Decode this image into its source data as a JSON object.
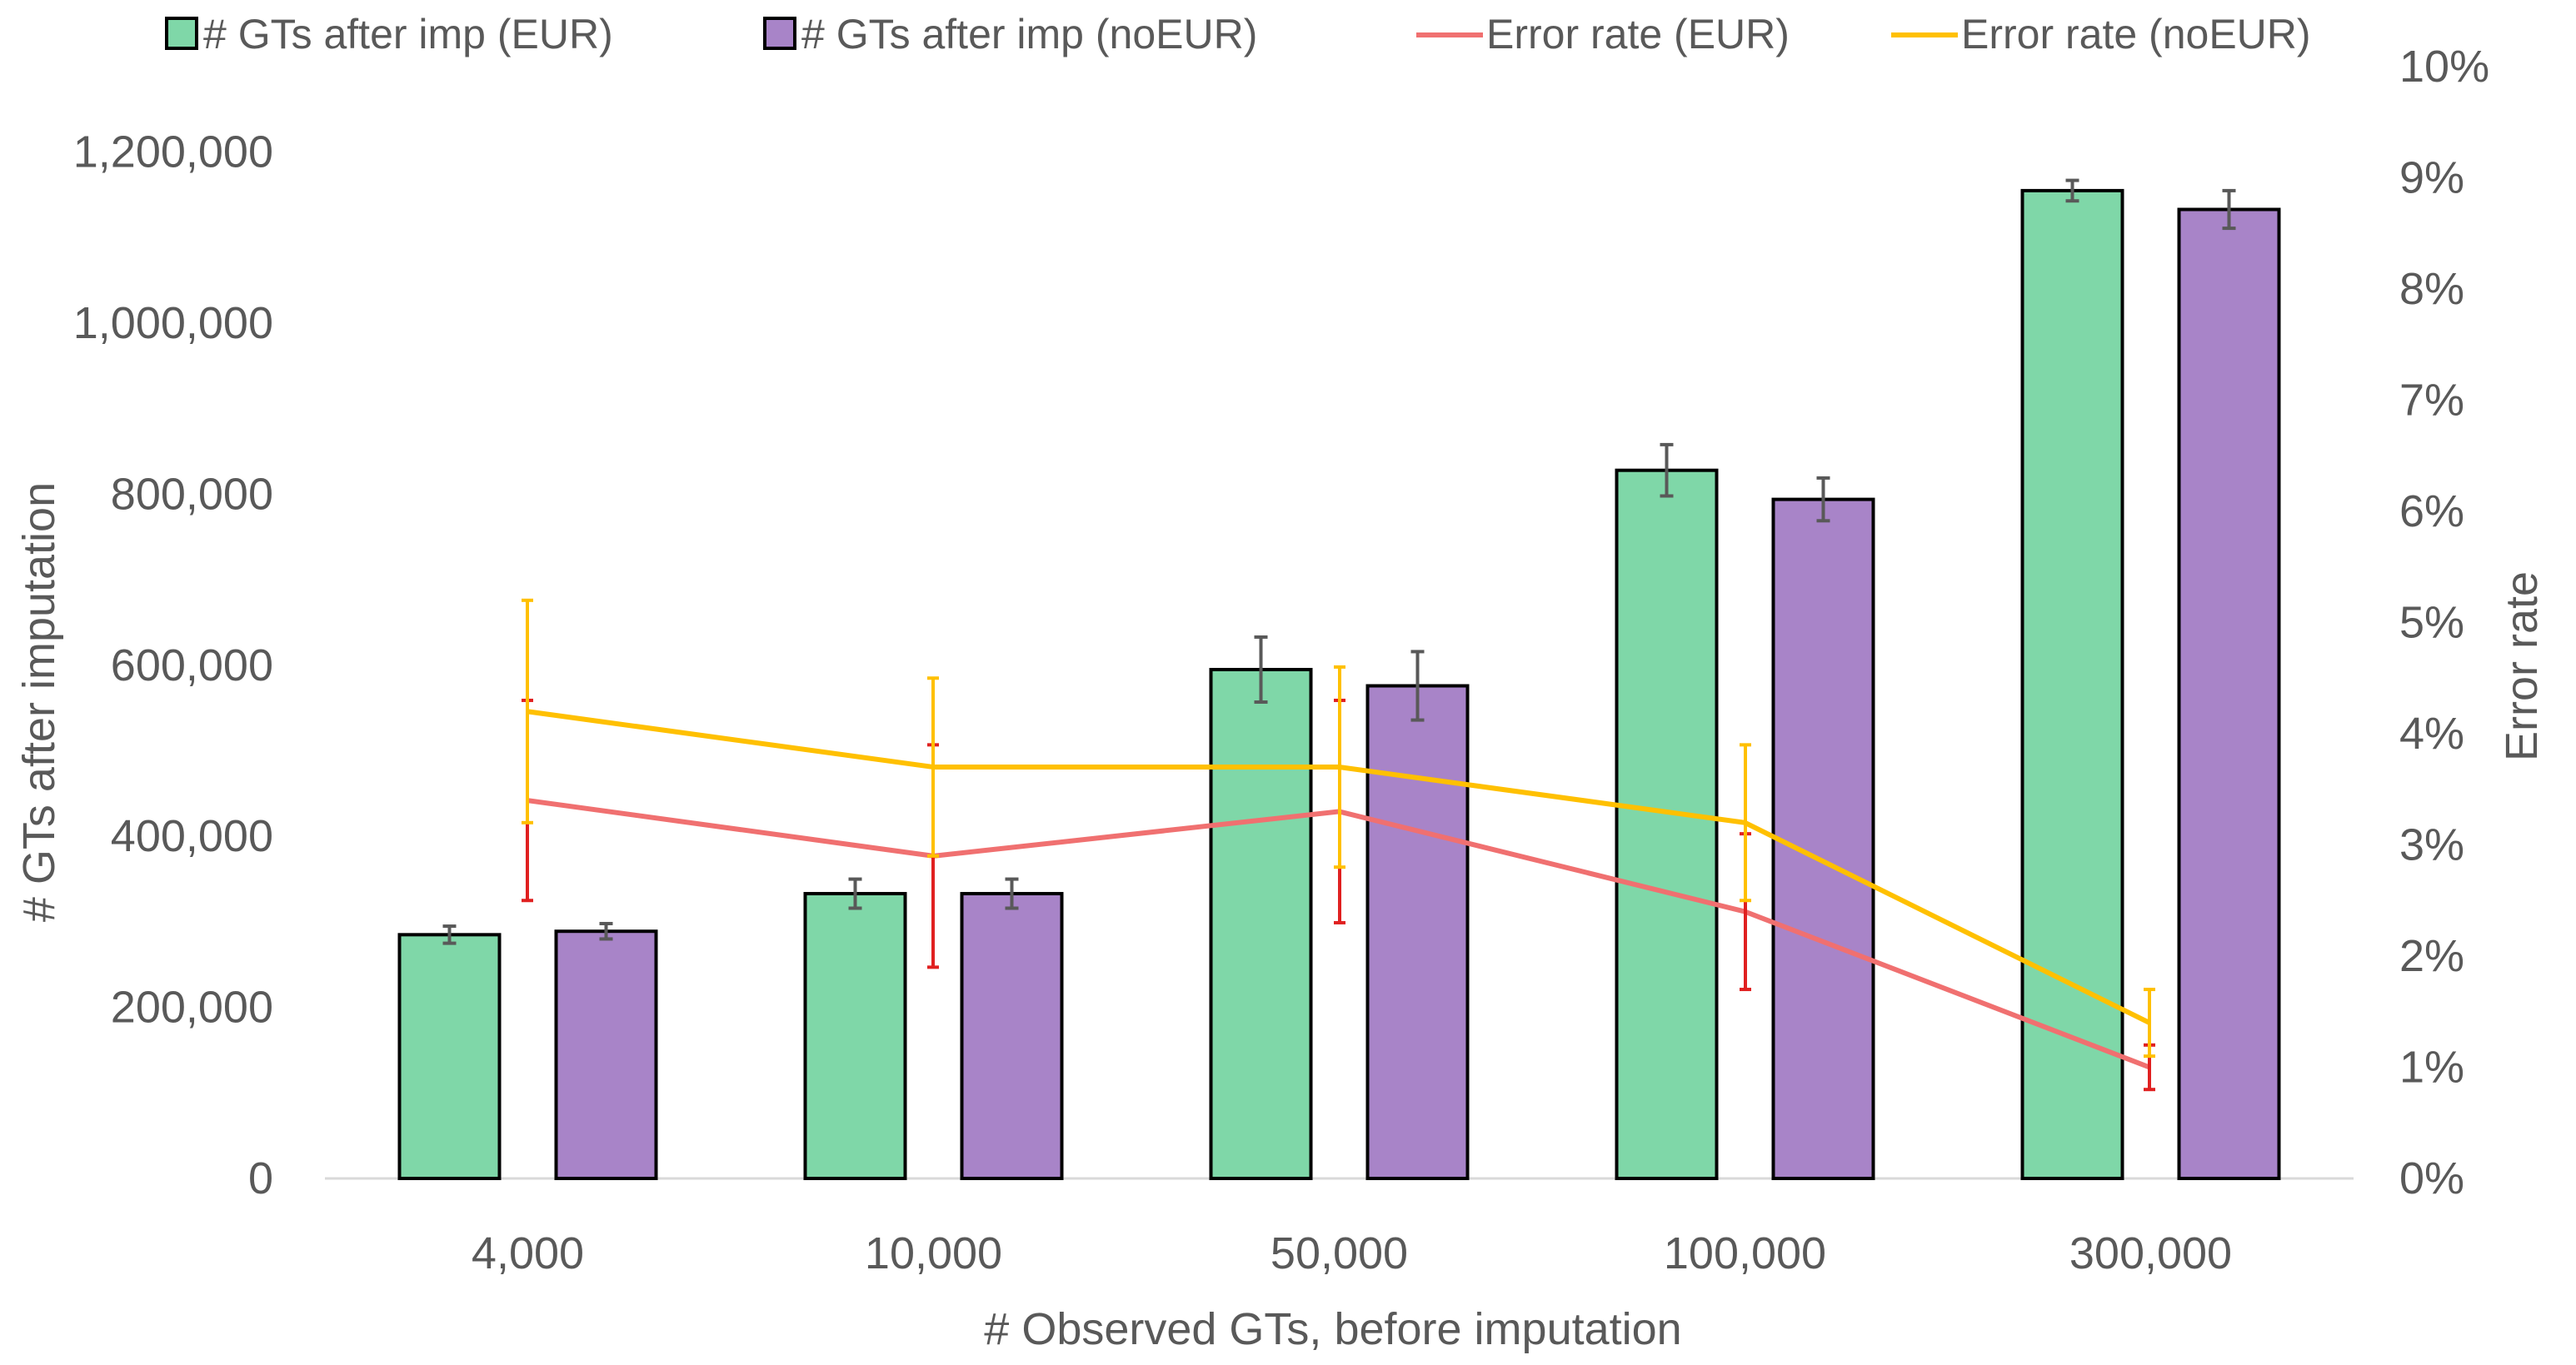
{
  "chart_data": {
    "type": "bar",
    "title": "",
    "xlabel": "# Observed GTs, before imputation",
    "ylabel": "# GTs after imputation",
    "y2label": "Error rate",
    "categories": [
      "4,000",
      "10,000",
      "50,000",
      "100,000",
      "300,000"
    ],
    "ylim": [
      0,
      1300000
    ],
    "y_ticks": [
      0,
      200000,
      400000,
      600000,
      800000,
      1000000,
      1200000
    ],
    "y_tick_labels": [
      "0",
      "200,000",
      "400,000",
      "600,000",
      "800,000",
      "1,000,000",
      "1,200,000"
    ],
    "y2lim": [
      0,
      0.1
    ],
    "y2_ticks": [
      0,
      0.01,
      0.02,
      0.03,
      0.04,
      0.05,
      0.06,
      0.07,
      0.08,
      0.09,
      0.1
    ],
    "y2_tick_labels": [
      "0%",
      "1%",
      "2%",
      "3%",
      "4%",
      "5%",
      "6%",
      "7%",
      "8%",
      "9%",
      "10%"
    ],
    "grid": false,
    "legend_position": "top",
    "bar_series": [
      {
        "name": "# GTs after imp (EUR)",
        "color": "#7fd7a8",
        "values": [
          285000,
          333000,
          595000,
          828000,
          1155000
        ],
        "errors": [
          10000,
          17000,
          38000,
          30000,
          12000
        ]
      },
      {
        "name": "# GTs after imp (noEUR)",
        "color": "#a884c8",
        "values": [
          289000,
          333000,
          576000,
          794000,
          1133000
        ],
        "errors": [
          9000,
          17000,
          40000,
          25000,
          22000
        ]
      }
    ],
    "line_series": [
      {
        "name": "Error rate (EUR)",
        "color": "#f07070",
        "values": [
          0.034,
          0.029,
          0.033,
          0.024,
          0.01
        ],
        "errors": [
          0.009,
          0.01,
          0.01,
          0.007,
          0.002
        ],
        "error_color": "#e02020"
      },
      {
        "name": "Error rate (noEUR)",
        "color": "#ffc000",
        "values": [
          0.042,
          0.037,
          0.037,
          0.032,
          0.014
        ],
        "errors": [
          0.01,
          0.008,
          0.009,
          0.007,
          0.003
        ],
        "error_color": "#ffc000"
      }
    ]
  }
}
